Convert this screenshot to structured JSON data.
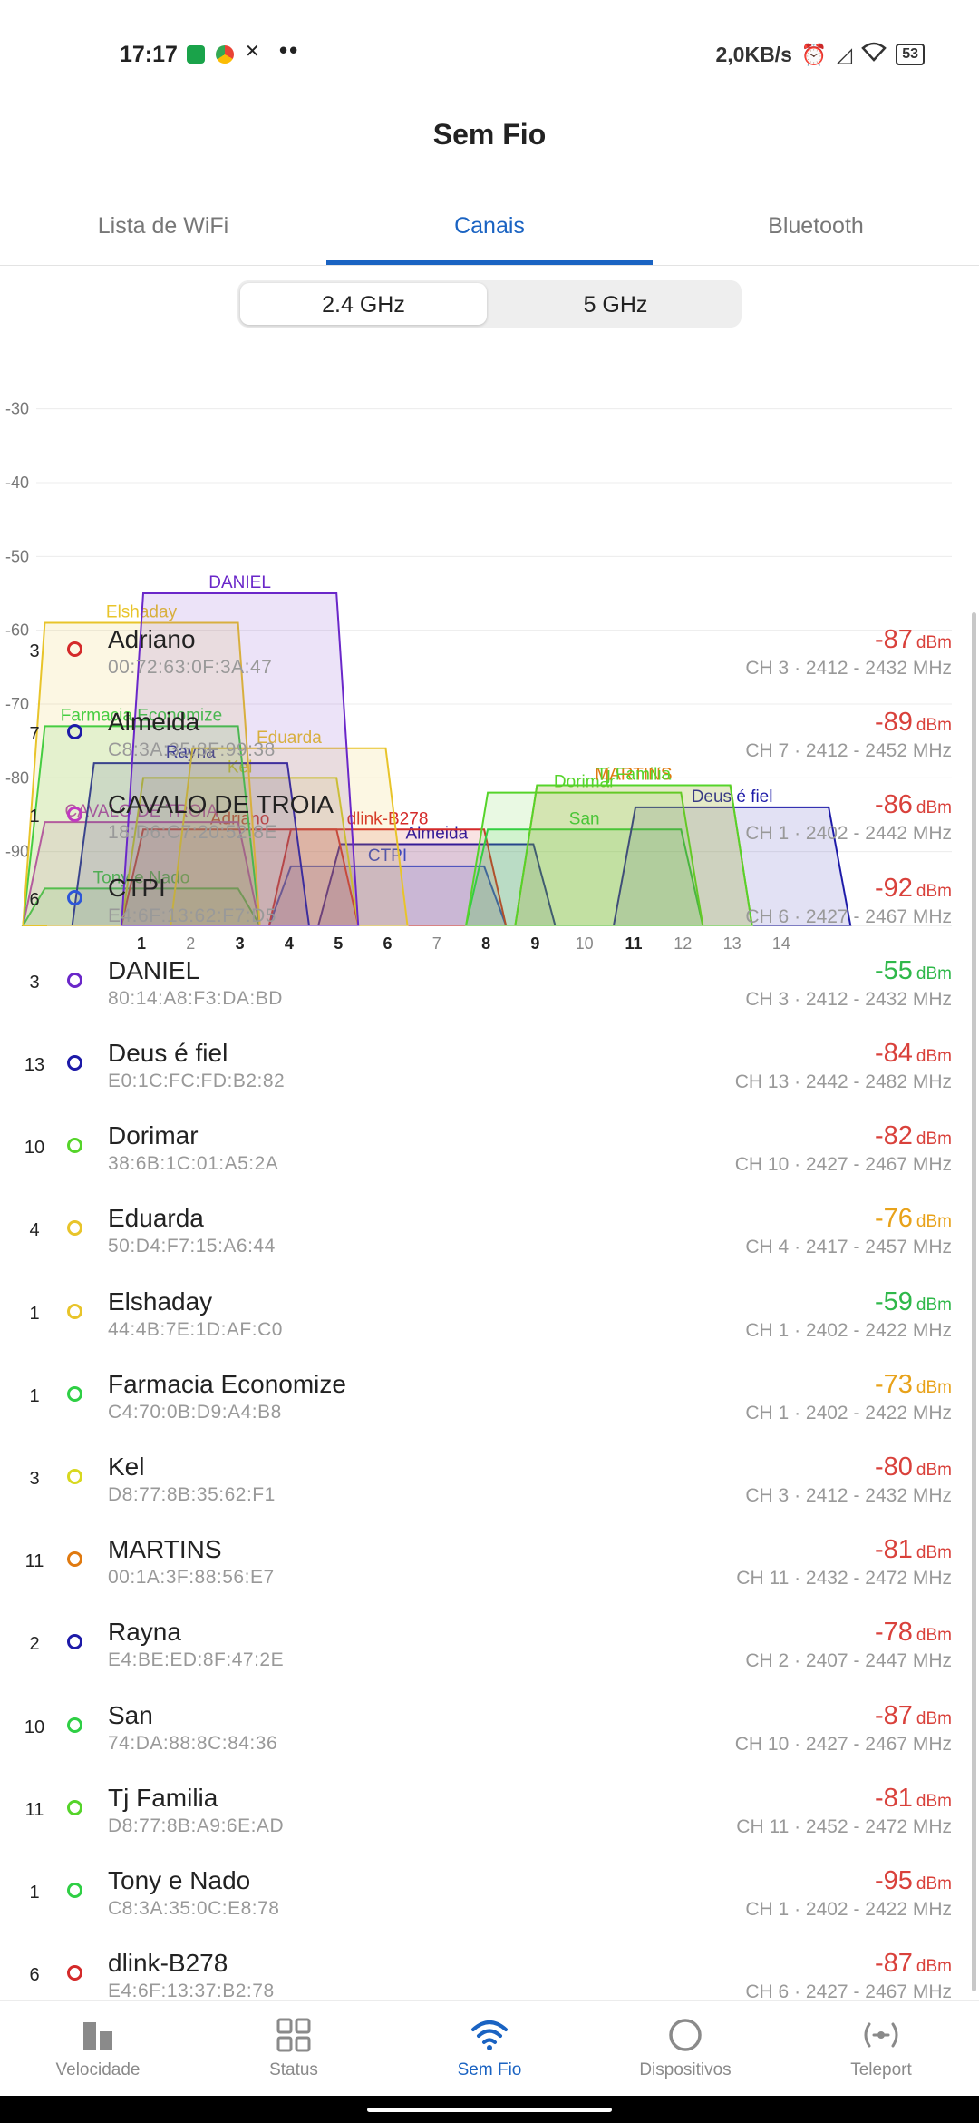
{
  "statusbar": {
    "time": "17:17",
    "speed": "2,0KB/s",
    "battery": "53",
    "more": "••"
  },
  "title": "Sem Fio",
  "tabs": [
    {
      "label": "Lista de WiFi",
      "active": false
    },
    {
      "label": "Canais",
      "active": true
    },
    {
      "label": "Bluetooth",
      "active": false
    }
  ],
  "bands": [
    {
      "label": "2.4 GHz",
      "selected": true
    },
    {
      "label": "5 GHz",
      "selected": false
    }
  ],
  "chart_data": {
    "type": "area",
    "yticks": [
      -30,
      -40,
      -50,
      -60,
      -70,
      -80,
      -90
    ],
    "ylim": [
      -100,
      -25
    ],
    "xticks": [
      1,
      2,
      3,
      4,
      5,
      6,
      7,
      8,
      9,
      10,
      11,
      12,
      13,
      14
    ],
    "xticks_bold": [
      1,
      3,
      4,
      5,
      6,
      8,
      9,
      11
    ],
    "series": [
      {
        "name": "DANIEL",
        "channel": 3,
        "value": -55,
        "color": "#6a27c9"
      },
      {
        "name": "Elshaday",
        "channel": 1,
        "value": -59,
        "color": "#e8c42a"
      },
      {
        "name": "Farmacia Economize",
        "channel": 1,
        "value": -73,
        "color": "#2fcf45"
      },
      {
        "name": "Eduarda",
        "channel": 4,
        "value": -76,
        "color": "#e8c42a"
      },
      {
        "name": "Rayna",
        "channel": 2,
        "value": -78,
        "color": "#1d1aa8"
      },
      {
        "name": "Kel",
        "channel": 3,
        "value": -80,
        "color": "#d8d820"
      },
      {
        "name": "MARTINS",
        "channel": 11,
        "value": -81,
        "color": "#e07a10"
      },
      {
        "name": "Tj Familia",
        "channel": 11,
        "value": -81,
        "color": "#55d42a"
      },
      {
        "name": "Dorimar",
        "channel": 10,
        "value": -82,
        "color": "#55d42a"
      },
      {
        "name": "Deus é fiel",
        "channel": 13,
        "value": -84,
        "color": "#1d1aa8"
      },
      {
        "name": "CAVALO DE TROIA",
        "channel": 1,
        "value": -86,
        "color": "#c03ac0"
      },
      {
        "name": "Adriano",
        "channel": 3,
        "value": -87,
        "color": "#d42a2a"
      },
      {
        "name": "dlink-B278",
        "channel": 6,
        "value": -87,
        "color": "#d42a2a"
      },
      {
        "name": "San",
        "channel": 10,
        "value": -87,
        "color": "#2fcf45"
      },
      {
        "name": "Almeida",
        "channel": 7,
        "value": -89,
        "color": "#1d1aa8"
      },
      {
        "name": "CTPI",
        "channel": 6,
        "value": -92,
        "color": "#2d57d8"
      },
      {
        "name": "Tony e Nado",
        "channel": 1,
        "value": -95,
        "color": "#2fcf45"
      }
    ]
  },
  "networks": [
    {
      "ch": "3",
      "name": "Adriano",
      "mac": "00:72:63:0F:3A:47",
      "dbm": "-87",
      "unit": "dBm",
      "freq": "CH 3 · 2412 - 2432 MHz",
      "dot": "#d42a2a",
      "sigColor": "#d9413b"
    },
    {
      "ch": "7",
      "name": "Almeida",
      "mac": "C8:3A:35:8F:99:38",
      "dbm": "-89",
      "unit": "dBm",
      "freq": "CH 7 · 2412 - 2452 MHz",
      "dot": "#1d1aa8",
      "sigColor": "#d9413b"
    },
    {
      "ch": "1",
      "name": "CAVALO DE TROIA",
      "mac": "18:D6:C7:20:52:8E",
      "dbm": "-86",
      "unit": "dBm",
      "freq": "CH 1 · 2402 - 2442 MHz",
      "dot": "#c03ac0",
      "sigColor": "#d9413b"
    },
    {
      "ch": "6",
      "name": "CTPI",
      "mac": "E4:6F:13:62:F7:D5",
      "dbm": "-92",
      "unit": "dBm",
      "freq": "CH 6 · 2427 - 2467 MHz",
      "dot": "#2d57d8",
      "sigColor": "#d9413b"
    },
    {
      "ch": "3",
      "name": "DANIEL",
      "mac": "80:14:A8:F3:DA:BD",
      "dbm": "-55",
      "unit": "dBm",
      "freq": "CH 3 · 2412 - 2432 MHz",
      "dot": "#6a27c9",
      "sigColor": "#2fb84a"
    },
    {
      "ch": "13",
      "name": "Deus é fiel",
      "mac": "E0:1C:FC:FD:B2:82",
      "dbm": "-84",
      "unit": "dBm",
      "freq": "CH 13 · 2442 - 2482 MHz",
      "dot": "#1d1aa8",
      "sigColor": "#d9413b"
    },
    {
      "ch": "10",
      "name": "Dorimar",
      "mac": "38:6B:1C:01:A5:2A",
      "dbm": "-82",
      "unit": "dBm",
      "freq": "CH 10 · 2427 - 2467 MHz",
      "dot": "#55d42a",
      "sigColor": "#d9413b"
    },
    {
      "ch": "4",
      "name": "Eduarda",
      "mac": "50:D4:F7:15:A6:44",
      "dbm": "-76",
      "unit": "dBm",
      "freq": "CH 4 · 2417 - 2457 MHz",
      "dot": "#e8c42a",
      "sigColor": "#e8a21a"
    },
    {
      "ch": "1",
      "name": "Elshaday",
      "mac": "44:4B:7E:1D:AF:C0",
      "dbm": "-59",
      "unit": "dBm",
      "freq": "CH 1 · 2402 - 2422 MHz",
      "dot": "#e8c42a",
      "sigColor": "#2fb84a"
    },
    {
      "ch": "1",
      "name": "Farmacia Economize",
      "mac": "C4:70:0B:D9:A4:B8",
      "dbm": "-73",
      "unit": "dBm",
      "freq": "CH 1 · 2402 - 2422 MHz",
      "dot": "#2fcf45",
      "sigColor": "#e8a21a"
    },
    {
      "ch": "3",
      "name": "Kel",
      "mac": "D8:77:8B:35:62:F1",
      "dbm": "-80",
      "unit": "dBm",
      "freq": "CH 3 · 2412 - 2432 MHz",
      "dot": "#d8d820",
      "sigColor": "#d9413b"
    },
    {
      "ch": "11",
      "name": "MARTINS",
      "mac": "00:1A:3F:88:56:E7",
      "dbm": "-81",
      "unit": "dBm",
      "freq": "CH 11 · 2432 - 2472 MHz",
      "dot": "#e07a10",
      "sigColor": "#d9413b"
    },
    {
      "ch": "2",
      "name": "Rayna",
      "mac": "E4:BE:ED:8F:47:2E",
      "dbm": "-78",
      "unit": "dBm",
      "freq": "CH 2 · 2407 - 2447 MHz",
      "dot": "#1d1aa8",
      "sigColor": "#d9413b"
    },
    {
      "ch": "10",
      "name": "San",
      "mac": "74:DA:88:8C:84:36",
      "dbm": "-87",
      "unit": "dBm",
      "freq": "CH 10 · 2427 - 2467 MHz",
      "dot": "#2fcf45",
      "sigColor": "#d9413b"
    },
    {
      "ch": "11",
      "name": "Tj Familia",
      "mac": "D8:77:8B:A9:6E:AD",
      "dbm": "-81",
      "unit": "dBm",
      "freq": "CH 11 · 2452 - 2472 MHz",
      "dot": "#55d42a",
      "sigColor": "#d9413b"
    },
    {
      "ch": "1",
      "name": "Tony e Nado",
      "mac": "C8:3A:35:0C:E8:78",
      "dbm": "-95",
      "unit": "dBm",
      "freq": "CH 1 · 2402 - 2422 MHz",
      "dot": "#2fcf45",
      "sigColor": "#d9413b"
    },
    {
      "ch": "6",
      "name": "dlink-B278",
      "mac": "E4:6F:13:37:B2:78",
      "dbm": "-87",
      "unit": "dBm",
      "freq": "CH 6 · 2427 - 2467 MHz",
      "dot": "#d42a2a",
      "sigColor": "#d9413b"
    }
  ],
  "nav": [
    {
      "label": "Velocidade",
      "icon": "speed-bars-icon",
      "active": false
    },
    {
      "label": "Status",
      "icon": "grid-icon",
      "active": false
    },
    {
      "label": "Sem Fio",
      "icon": "wifi-icon",
      "active": true
    },
    {
      "label": "Dispositivos",
      "icon": "devices-circle-icon",
      "active": false
    },
    {
      "label": "Teleport",
      "icon": "teleport-icon",
      "active": false
    }
  ]
}
